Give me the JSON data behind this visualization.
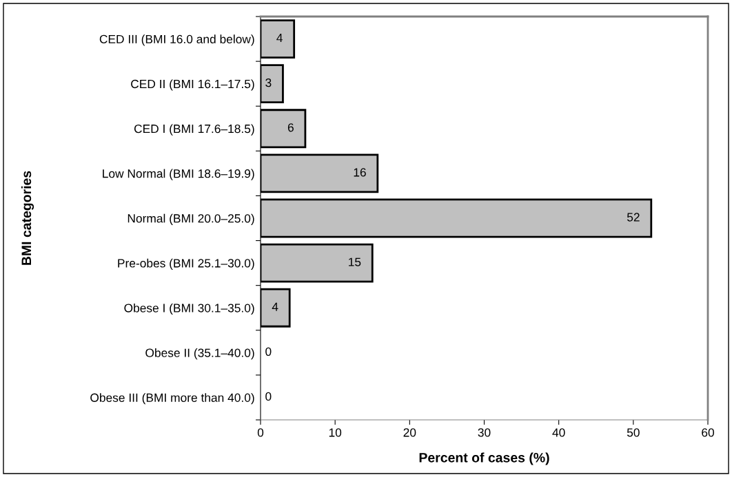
{
  "chart_data": {
    "type": "bar",
    "orientation": "horizontal",
    "xlabel": "Percent of cases (%)",
    "ylabel": "BMI categories",
    "categories": [
      "CED III (BMI 16.0 and below)",
      "CED II (BMI 16.1–17.5)",
      "CED I (BMI 17.6–18.5)",
      "Low Normal (BMI 18.6–19.9)",
      "Normal (BMI 20.0–25.0)",
      "Pre-obes (BMI 25.1–30.0)",
      "Obese I (BMI 30.1–35.0)",
      "Obese II (35.1–40.0)",
      "Obese III (BMI more than 40.0)"
    ],
    "values": [
      4.5,
      3.0,
      6.0,
      15.7,
      52.4,
      15.0,
      3.9,
      0,
      0
    ],
    "value_labels": [
      "4",
      "3",
      "6",
      "16",
      "52",
      "15",
      "4",
      "0",
      "0"
    ],
    "color": "#c0c0c0",
    "xlim": [
      0,
      60
    ],
    "xticks": [
      0,
      10,
      20,
      30,
      40,
      50,
      60
    ],
    "grid": false,
    "legend": false
  }
}
